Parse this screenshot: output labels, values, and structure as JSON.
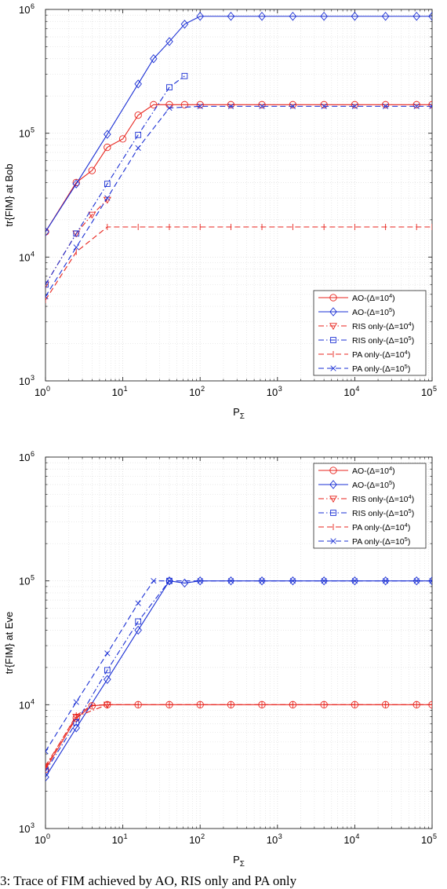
{
  "caption": "3: Trace of FIM achieved by AO, RIS only and PA only",
  "chart_data": [
    {
      "type": "line",
      "x_scale": "log",
      "y_scale": "log",
      "xlim": [
        1,
        100000
      ],
      "ylim": [
        1000,
        1000000
      ],
      "grid": true,
      "legend_position": "bottom-right",
      "xlabel": "P",
      "xlabel_sub": "Σ",
      "ylabel": "tr{FIM}  at Bob",
      "x_ticks": [
        {
          "base": "10",
          "exp": "0"
        },
        {
          "base": "10",
          "exp": "1"
        },
        {
          "base": "10",
          "exp": "2"
        },
        {
          "base": "10",
          "exp": "3"
        },
        {
          "base": "10",
          "exp": "4"
        },
        {
          "base": "10",
          "exp": "5"
        }
      ],
      "y_ticks": [
        {
          "base": "10",
          "exp": "3"
        },
        {
          "base": "10",
          "exp": "4"
        },
        {
          "base": "10",
          "exp": "5"
        },
        {
          "base": "10",
          "exp": "6"
        }
      ],
      "series": [
        {
          "name": "AO-(Δ=10",
          "name_sup": "4",
          "name_end": ")",
          "color": "#e8231c",
          "dash": "solid",
          "marker": "circle",
          "x": [
            1,
            2.5,
            4,
            6.3,
            10,
            15.8,
            25,
            40,
            63,
            100,
            250,
            630,
            1580,
            4000,
            10000,
            25000,
            63000,
            100000
          ],
          "y": [
            16000,
            40000,
            50000,
            77000,
            90000,
            140000,
            170000,
            170000,
            170000,
            170000,
            170000,
            170000,
            170000,
            170000,
            170000,
            170000,
            170000,
            170000
          ]
        },
        {
          "name": "AO-(Δ=10",
          "name_sup": "5",
          "name_end": ")",
          "color": "#1a2fd4",
          "dash": "solid",
          "marker": "diamond",
          "x": [
            1,
            2.5,
            6.3,
            15.8,
            25,
            40,
            63,
            100,
            250,
            630,
            1580,
            4000,
            10000,
            25000,
            63000,
            100000
          ],
          "y": [
            16000,
            39000,
            98000,
            250000,
            400000,
            550000,
            760000,
            880000,
            880000,
            880000,
            880000,
            880000,
            880000,
            880000,
            880000,
            880000
          ]
        },
        {
          "name": "RIS only-(Δ=10",
          "name_sup": "4",
          "name_end": ")",
          "color": "#e8231c",
          "dash": "dashdot",
          "marker": "triangle",
          "x": [
            1,
            2.5,
            4,
            6.3
          ],
          "y": [
            6000,
            15500,
            22000,
            29000
          ]
        },
        {
          "name": "RIS only-(Δ=10",
          "name_sup": "5",
          "name_end": ")",
          "color": "#1a2fd4",
          "dash": "dashdot",
          "marker": "square",
          "x": [
            1,
            2.5,
            6.3,
            15.8,
            40,
            63
          ],
          "y": [
            6000,
            15500,
            39000,
            97000,
            235000,
            290000
          ]
        },
        {
          "name": "PA only-(Δ=10",
          "name_sup": "4",
          "name_end": ")",
          "color": "#e8231c",
          "dash": "dashed",
          "marker": "hline",
          "x": [
            1,
            2.5,
            6.3,
            15.8,
            40,
            100,
            250,
            630,
            1580,
            4000,
            10000,
            25000,
            63000,
            100000
          ],
          "y": [
            4500,
            11000,
            17500,
            17500,
            17500,
            17500,
            17500,
            17500,
            17500,
            17500,
            17500,
            17500,
            17500,
            17500
          ]
        },
        {
          "name": "PA only-(Δ=10",
          "name_sup": "5",
          "name_end": ")",
          "color": "#1a2fd4",
          "dash": "dashed",
          "marker": "x",
          "x": [
            1,
            2.5,
            6.3,
            15.8,
            40,
            100,
            250,
            630,
            1580,
            4000,
            10000,
            25000,
            63000,
            100000
          ],
          "y": [
            4800,
            12000,
            30000,
            76000,
            160000,
            165000,
            165000,
            165000,
            165000,
            165000,
            165000,
            165000,
            165000,
            165000
          ]
        }
      ]
    },
    {
      "type": "line",
      "x_scale": "log",
      "y_scale": "log",
      "xlim": [
        1,
        100000
      ],
      "ylim": [
        1000,
        1000000
      ],
      "grid": true,
      "legend_position": "top-right",
      "xlabel": "P",
      "xlabel_sub": "Σ",
      "ylabel": "tr{FIM}  at Eve",
      "x_ticks": [
        {
          "base": "10",
          "exp": "0"
        },
        {
          "base": "10",
          "exp": "1"
        },
        {
          "base": "10",
          "exp": "2"
        },
        {
          "base": "10",
          "exp": "3"
        },
        {
          "base": "10",
          "exp": "4"
        },
        {
          "base": "10",
          "exp": "5"
        }
      ],
      "y_ticks": [
        {
          "base": "10",
          "exp": "3"
        },
        {
          "base": "10",
          "exp": "4"
        },
        {
          "base": "10",
          "exp": "5"
        },
        {
          "base": "10",
          "exp": "6"
        }
      ],
      "series": [
        {
          "name": "AO-(Δ=10",
          "name_sup": "4",
          "name_end": ")",
          "color": "#e8231c",
          "dash": "solid",
          "marker": "circle",
          "x": [
            1,
            2.5,
            4,
            6.3,
            15.8,
            40,
            100,
            250,
            630,
            1580,
            4000,
            10000,
            25000,
            63000,
            100000
          ],
          "y": [
            3000,
            7800,
            9800,
            10000,
            10000,
            10000,
            10000,
            10000,
            10000,
            10000,
            10000,
            10000,
            10000,
            10000,
            10000
          ]
        },
        {
          "name": "AO-(Δ=10",
          "name_sup": "5",
          "name_end": ")",
          "color": "#1a2fd4",
          "dash": "solid",
          "marker": "diamond",
          "x": [
            1,
            2.5,
            6.3,
            15.8,
            40,
            63,
            100,
            250,
            630,
            1580,
            4000,
            10000,
            25000,
            63000,
            100000
          ],
          "y": [
            2600,
            6500,
            16000,
            40000,
            100000,
            96000,
            100000,
            100000,
            100000,
            100000,
            100000,
            100000,
            100000,
            100000,
            100000
          ]
        },
        {
          "name": "RIS only-(Δ=10",
          "name_sup": "4",
          "name_end": ")",
          "color": "#e8231c",
          "dash": "dashdot",
          "marker": "triangle",
          "x": [
            1,
            2.5,
            6.3
          ],
          "y": [
            3200,
            8000,
            10000
          ]
        },
        {
          "name": "RIS only-(Δ=10",
          "name_sup": "5",
          "name_end": ")",
          "color": "#1a2fd4",
          "dash": "dashdot",
          "marker": "square",
          "x": [
            1,
            2.5,
            6.3,
            15.8,
            40
          ],
          "y": [
            2900,
            7200,
            19000,
            47000,
            100000
          ]
        },
        {
          "name": "PA only-(Δ=10",
          "name_sup": "4",
          "name_end": ")",
          "color": "#e8231c",
          "dash": "dashed",
          "marker": "hline",
          "x": [
            1,
            2.5,
            4,
            6.3,
            15.8,
            40,
            100,
            250,
            630,
            1580,
            4000,
            10000,
            25000,
            63000,
            100000
          ],
          "y": [
            3100,
            8200,
            9900,
            10000,
            10000,
            10000,
            10000,
            10000,
            10000,
            10000,
            10000,
            10000,
            10000,
            10000,
            10000
          ]
        },
        {
          "name": "PA only-(Δ=10",
          "name_sup": "5",
          "name_end": ")",
          "color": "#1a2fd4",
          "dash": "dashed",
          "marker": "x",
          "x": [
            1,
            2.5,
            6.3,
            15.8,
            25,
            40,
            100,
            250,
            630,
            1580,
            4000,
            10000,
            25000,
            63000,
            100000
          ],
          "y": [
            4200,
            10500,
            26000,
            66000,
            100000,
            100000,
            100000,
            100000,
            100000,
            100000,
            100000,
            100000,
            100000,
            100000,
            100000
          ]
        }
      ]
    }
  ]
}
